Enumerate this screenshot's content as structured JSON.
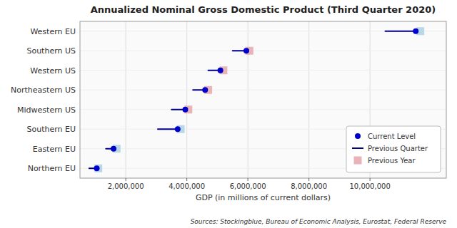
{
  "chart_data": {
    "type": "dot",
    "orientation": "horizontal",
    "title": "Annualized Nominal Gross Domestic Product (Third Quarter 2020)",
    "xlabel": "GDP (in millions of current dollars)",
    "annotations": [
      "Sources: Stockingblue, Bureau of Economic Analysis, Eurostat, Federal Reserve"
    ],
    "categories": [
      "Northern EU",
      "Eastern EU",
      "Southern EU",
      "Midwestern US",
      "Northeastern US",
      "Western US",
      "Southern US",
      "Western EU"
    ],
    "series": [
      {
        "name": "Current Level",
        "type": "dot",
        "marker": "circle",
        "color": "#0000cd",
        "values": [
          1050000,
          1600000,
          3700000,
          3950000,
          4600000,
          5100000,
          5950000,
          11500000
        ]
      },
      {
        "name": "Previous Quarter",
        "type": "segment",
        "line_style": "solid",
        "color": "#00008b",
        "values": [
          800000,
          1350000,
          3050000,
          3500000,
          4200000,
          4700000,
          5500000,
          10500000
        ]
      },
      {
        "name": "Previous Year",
        "type": "dot",
        "marker": "square",
        "color": "#e8b4b8",
        "colors": [
          "#b8d8e8",
          "#b8d8e8",
          "#b8d8e8",
          "#e8b4b8",
          "#e8b4b8",
          "#e8b4b8",
          "#e8b4b8",
          "#b8d8e8"
        ],
        "values": [
          1100000,
          1700000,
          3800000,
          4050000,
          4700000,
          5200000,
          6050000,
          11650000
        ]
      }
    ],
    "xlim": [
      500000,
      12500000
    ],
    "xticks": [
      {
        "value": 2000000,
        "label": "2,000,000"
      },
      {
        "value": 4000000,
        "label": "4,000,000"
      },
      {
        "value": 6000000,
        "label": "6,000,000"
      },
      {
        "value": 8000000,
        "label": "8,000,000"
      },
      {
        "value": 10000000,
        "label": "10,000,000"
      }
    ],
    "grid": true,
    "legend": "lower right"
  }
}
